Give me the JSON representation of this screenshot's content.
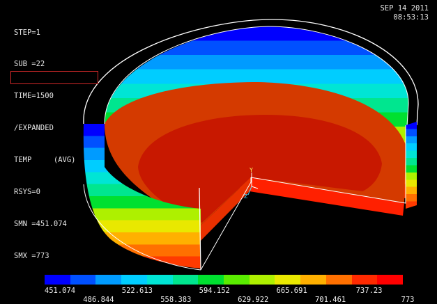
{
  "info_lines": [
    {
      "key": "step",
      "text": "STEP=1"
    },
    {
      "key": "sub",
      "text": "SUB =22"
    },
    {
      "key": "time",
      "text": "TIME=1500"
    },
    {
      "key": "expanded",
      "text": "/EXPANDED"
    },
    {
      "key": "temp",
      "text": "TEMP     (AVG)"
    },
    {
      "key": "rsys",
      "text": "RSYS=0"
    },
    {
      "key": "smn",
      "text": "SMN =451.074"
    },
    {
      "key": "smx",
      "text": "SMX =773"
    }
  ],
  "date": "SEP 14 2011",
  "time": "08:53:13",
  "axis_labels": {
    "y": "Y",
    "x": "X",
    "z": "Z"
  },
  "legend": {
    "colors": [
      "#0000ff",
      "#0050ff",
      "#009bff",
      "#00cdff",
      "#00e5d5",
      "#00e68f",
      "#00e030",
      "#5aec00",
      "#aef000",
      "#e9e800",
      "#ffb000",
      "#ff7000",
      "#ff2a00",
      "#ff0000"
    ],
    "top_labels": [
      "451.074",
      "522.613",
      "594.152",
      "665.691",
      "737.23"
    ],
    "bottom_labels": [
      "486.844",
      "558.383",
      "629.922",
      "701.461",
      "773"
    ]
  },
  "model_colors": {
    "floor": "#d43a00",
    "floor_inner": "#cc1a00",
    "wall_bands": [
      "#0000ff",
      "#0050ff",
      "#009bff",
      "#00cdff",
      "#00e5d5",
      "#00e68f",
      "#00e030",
      "#aef000",
      "#e9e800",
      "#ffb000",
      "#ff7000",
      "#ff3a00"
    ]
  }
}
